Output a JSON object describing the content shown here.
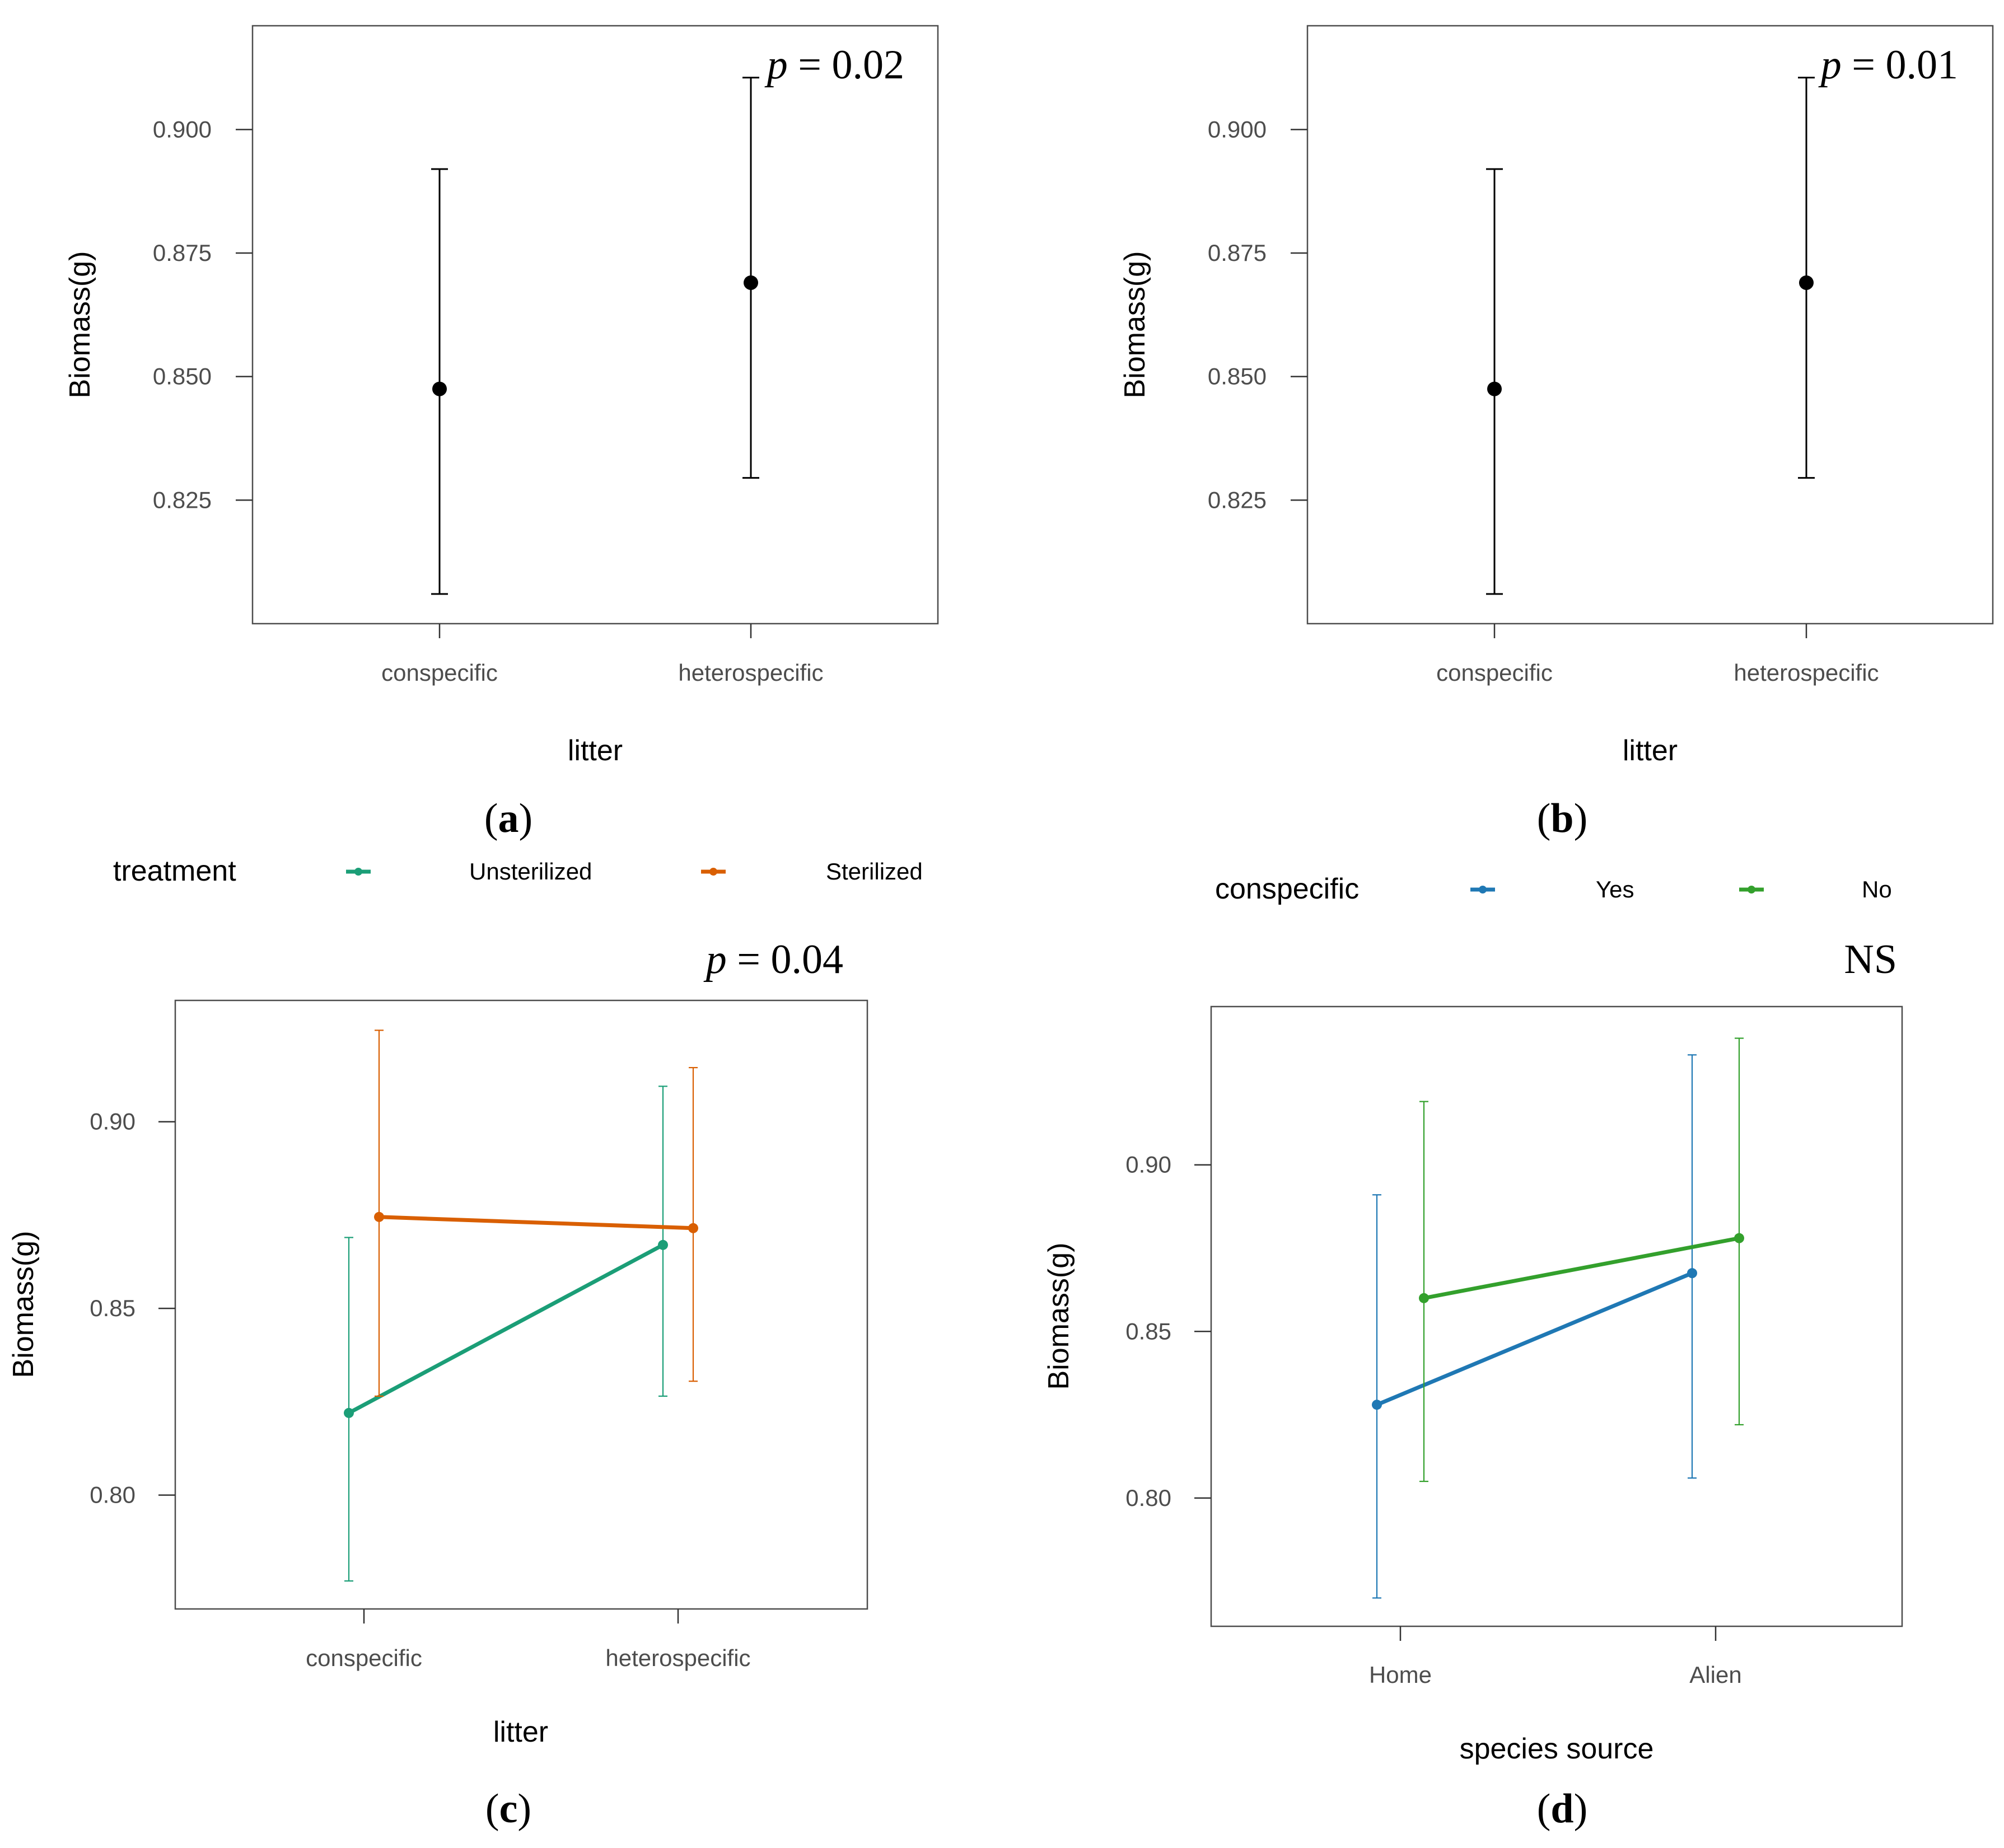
{
  "chart_data": [
    {
      "panel": "a",
      "type": "errorbar",
      "tag": "a",
      "annotation_p": "p",
      "annotation_rest": " = 0.02",
      "xlabel": "litter",
      "ylabel": "Biomass(g)",
      "categories": [
        "conspecific",
        "heterospecific"
      ],
      "yticks": [
        0.825,
        0.85,
        0.875,
        0.9
      ],
      "ytick_labels": [
        "0.825",
        "0.850",
        "0.875",
        "0.900"
      ],
      "ylim": [
        0.8,
        0.921
      ],
      "series": [
        {
          "name": "",
          "color": "#000000",
          "values": [
            0.8475,
            0.869
          ],
          "lower": [
            0.806,
            0.8295
          ],
          "upper": [
            0.892,
            0.9105
          ]
        }
      ]
    },
    {
      "panel": "b",
      "type": "errorbar",
      "tag": "b",
      "annotation_p": "p",
      "annotation_rest": " = 0.01",
      "xlabel": "litter",
      "ylabel": "Biomass(g)",
      "categories": [
        "conspecific",
        "heterospecific"
      ],
      "yticks": [
        0.825,
        0.85,
        0.875,
        0.9
      ],
      "ytick_labels": [
        "0.825",
        "0.850",
        "0.875",
        "0.900"
      ],
      "ylim": [
        0.8,
        0.921
      ],
      "series": [
        {
          "name": "",
          "color": "#000000",
          "values": [
            0.8475,
            0.869
          ],
          "lower": [
            0.806,
            0.8295
          ],
          "upper": [
            0.892,
            0.9105
          ]
        }
      ]
    },
    {
      "panel": "c",
      "type": "line",
      "tag": "c",
      "annotation_p": "p",
      "annotation_rest": " = 0.04",
      "xlabel": "litter",
      "ylabel": "Biomass(g)",
      "legend_title": "treatment",
      "categories": [
        "conspecific",
        "heterospecific"
      ],
      "yticks": [
        0.8,
        0.85,
        0.9
      ],
      "ytick_labels": [
        "0.80",
        "0.85",
        "0.90"
      ],
      "ylim": [
        0.7695,
        0.9325
      ],
      "series": [
        {
          "name": "Unsterilized",
          "color": "#1b9e77",
          "values": [
            0.822,
            0.867
          ],
          "lower": [
            0.777,
            0.8265
          ],
          "upper": [
            0.869,
            0.9095
          ]
        },
        {
          "name": "Sterilized",
          "color": "#d95f02",
          "values": [
            0.8745,
            0.8715
          ],
          "lower": [
            0.8265,
            0.8305
          ],
          "upper": [
            0.9245,
            0.9145
          ]
        }
      ]
    },
    {
      "panel": "d",
      "type": "line",
      "tag": "d",
      "annotation_text": "NS",
      "xlabel": "species source",
      "ylabel": "Biomass(g)",
      "legend_title": "conspecific",
      "categories": [
        "Home",
        "Alien"
      ],
      "yticks": [
        0.8,
        0.85,
        0.9
      ],
      "ytick_labels": [
        "0.80",
        "0.85",
        "0.90"
      ],
      "ylim": [
        0.7615,
        0.9475
      ],
      "series": [
        {
          "name": "Yes",
          "color": "#1f78b4",
          "values": [
            0.828,
            0.8675
          ],
          "lower": [
            0.77,
            0.806
          ],
          "upper": [
            0.891,
            0.933
          ]
        },
        {
          "name": "No",
          "color": "#33a02c",
          "values": [
            0.86,
            0.878
          ],
          "lower": [
            0.805,
            0.822
          ],
          "upper": [
            0.919,
            0.938
          ]
        }
      ]
    }
  ]
}
